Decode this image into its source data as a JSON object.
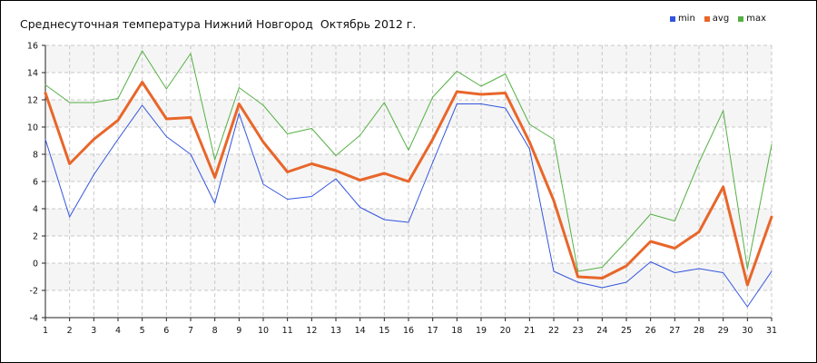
{
  "chart_data": {
    "type": "line",
    "title": "Среднесуточная температура Нижний Новгород  Октябрь 2012 г.",
    "x": [
      1,
      2,
      3,
      4,
      5,
      6,
      7,
      8,
      9,
      10,
      11,
      12,
      13,
      14,
      15,
      16,
      17,
      18,
      19,
      20,
      21,
      22,
      23,
      24,
      25,
      26,
      27,
      28,
      29,
      30,
      31
    ],
    "xticks": [
      "1",
      "2",
      "3",
      "4",
      "5",
      "6",
      "7",
      "8",
      "9",
      "10",
      "11",
      "12",
      "13",
      "14",
      "15",
      "16",
      "17",
      "18",
      "19",
      "20",
      "21",
      "22",
      "23",
      "24",
      "25",
      "26",
      "27",
      "28",
      "29",
      "30",
      "31"
    ],
    "ylim": [
      -4,
      16
    ],
    "yticks": [
      "-4",
      "-2",
      "0",
      "2",
      "4",
      "6",
      "8",
      "10",
      "12",
      "14",
      "16"
    ],
    "grid": true,
    "legend_position": "top-right",
    "series": [
      {
        "name": "min",
        "color": "#3355dd",
        "values": [
          9.1,
          3.4,
          6.5,
          9.1,
          11.6,
          9.3,
          8.0,
          4.4,
          11.0,
          5.8,
          4.7,
          4.9,
          6.2,
          4.1,
          3.2,
          3.0,
          7.4,
          11.7,
          11.7,
          11.4,
          8.4,
          -0.6,
          -1.4,
          -1.8,
          -1.4,
          0.1,
          -0.7,
          -0.4,
          -0.7,
          -3.2,
          -0.6
        ]
      },
      {
        "name": "avg",
        "color": "#e8662a",
        "values": [
          12.5,
          7.3,
          9.1,
          10.5,
          13.3,
          10.6,
          10.7,
          6.3,
          11.7,
          8.9,
          6.7,
          7.3,
          6.8,
          6.1,
          6.6,
          6.0,
          9.1,
          12.6,
          12.4,
          12.5,
          8.9,
          4.6,
          -1.0,
          -1.1,
          -0.2,
          1.6,
          1.1,
          2.3,
          5.6,
          -1.6,
          3.4
        ]
      },
      {
        "name": "max",
        "color": "#55b044",
        "values": [
          13.1,
          11.8,
          11.8,
          12.1,
          15.6,
          12.8,
          15.4,
          7.6,
          12.9,
          11.6,
          9.5,
          9.9,
          7.9,
          9.4,
          11.8,
          8.3,
          12.2,
          14.1,
          13.0,
          13.9,
          10.2,
          9.1,
          -0.6,
          -0.3,
          1.6,
          3.6,
          3.1,
          7.4,
          11.2,
          -0.4,
          8.7
        ]
      }
    ]
  }
}
